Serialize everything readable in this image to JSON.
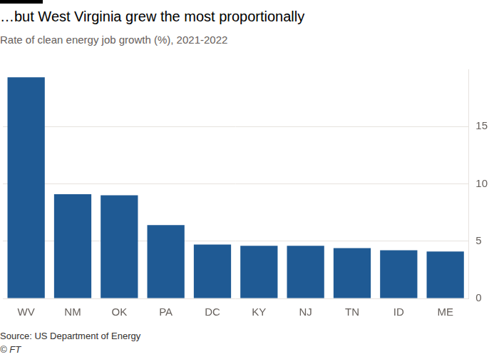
{
  "chart_data": {
    "type": "bar",
    "title": "…but West Virginia grew the most proportionally",
    "subtitle": "Rate of clean energy job growth (%), 2021-2022",
    "source": "Source: US Department of Energy",
    "credit": "© FT",
    "categories": [
      "WV",
      "NM",
      "OK",
      "PA",
      "DC",
      "KY",
      "NJ",
      "TN",
      "ID",
      "ME"
    ],
    "values": [
      19.3,
      9.1,
      9.0,
      6.4,
      4.7,
      4.6,
      4.6,
      4.4,
      4.2,
      4.1
    ],
    "color": "#1f5a94",
    "ylim": [
      0,
      20
    ],
    "yticks": [
      0,
      5,
      10,
      15
    ],
    "grid": true
  }
}
